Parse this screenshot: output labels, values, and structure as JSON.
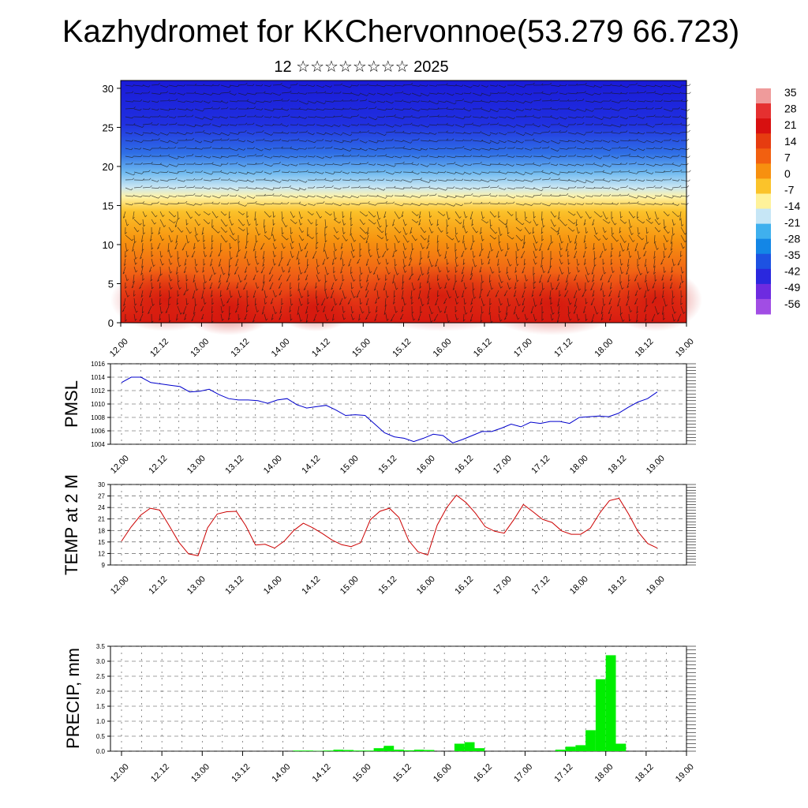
{
  "title": "Kazhydromet for KKChervonnoe(53.279 66.723)",
  "subtitle": "12 ☆☆☆☆☆☆☆☆ 2025",
  "time_labels": [
    "12.00",
    "12.12",
    "13.00",
    "13.12",
    "14.00",
    "14.12",
    "15.00",
    "15.12",
    "16.00",
    "16.12",
    "17.00",
    "17.12",
    "18.00",
    "18.12",
    "19.00"
  ],
  "chart_data": [
    {
      "type": "heatmap",
      "name": "vertical-cross-section",
      "x_ticks": [
        "12.00",
        "12.12",
        "13.00",
        "13.12",
        "14.00",
        "14.12",
        "15.00",
        "15.12",
        "16.00",
        "16.12",
        "17.00",
        "17.12",
        "18.00",
        "18.12",
        "19.00"
      ],
      "y_ticks": [
        0,
        5,
        10,
        15,
        20,
        25,
        30
      ],
      "ylim": [
        0,
        31
      ],
      "colorbar_labels": [
        35,
        28,
        21,
        14,
        7,
        0,
        -7,
        -14,
        -21,
        -28,
        -35,
        -42,
        -49,
        -56
      ],
      "colorbar_colors": [
        "#ef9b9b",
        "#e53030",
        "#d81010",
        "#e63c10",
        "#f26010",
        "#f7900f",
        "#fbc32a",
        "#fff29a",
        "#c6e6f6",
        "#3fb0ee",
        "#1386e6",
        "#1d52e2",
        "#2a28de",
        "#6e2be0",
        "#a14de4"
      ],
      "wind_barbs": true
    },
    {
      "type": "line",
      "name": "PMSL",
      "ylabel": "PMSL",
      "ylim": [
        1004,
        1016
      ],
      "y_ticks": [
        1004,
        1006,
        1008,
        1010,
        1012,
        1014,
        1016
      ],
      "x_ticks": [
        "12.00",
        "12.12",
        "13.00",
        "13.12",
        "14.00",
        "14.12",
        "15.00",
        "15.12",
        "16.00",
        "16.12",
        "17.00",
        "17.12",
        "18.00",
        "18.12",
        "19.00"
      ],
      "color": "#0000cc",
      "values": [
        1013.2,
        1014.0,
        1014.0,
        1013.2,
        1013.0,
        1012.8,
        1012.6,
        1011.8,
        1011.9,
        1012.2,
        1011.4,
        1010.8,
        1010.6,
        1010.6,
        1010.5,
        1010.1,
        1010.6,
        1010.8,
        1009.9,
        1009.4,
        1009.6,
        1009.8,
        1009.1,
        1008.3,
        1008.4,
        1008.3,
        1007.0,
        1005.7,
        1005.1,
        1004.9,
        1004.4,
        1004.9,
        1005.5,
        1005.3,
        1004.2,
        1004.7,
        1005.3,
        1005.9,
        1005.9,
        1006.4,
        1007.0,
        1006.6,
        1007.3,
        1007.1,
        1007.4,
        1007.4,
        1007.1,
        1008.0,
        1008.1,
        1008.2,
        1008.1,
        1008.6,
        1009.5,
        1010.3,
        1010.8,
        1011.8
      ]
    },
    {
      "type": "line",
      "name": "TEMP at 2 M",
      "ylabel": "TEMP at 2 M",
      "ylim": [
        9,
        30
      ],
      "y_ticks": [
        9,
        12,
        15,
        18,
        21,
        24,
        27,
        30
      ],
      "x_ticks": [
        "12.00",
        "12.12",
        "13.00",
        "13.12",
        "14.00",
        "14.12",
        "15.00",
        "15.12",
        "16.00",
        "16.12",
        "17.00",
        "17.12",
        "18.00",
        "18.12",
        "19.00"
      ],
      "color": "#cc0000",
      "values": [
        15.2,
        18.9,
        22.0,
        23.8,
        23.3,
        19.2,
        14.9,
        11.9,
        11.4,
        18.7,
        22.3,
        22.9,
        23.0,
        19.2,
        14.2,
        14.4,
        13.4,
        15.2,
        18.0,
        19.9,
        18.7,
        17.2,
        15.5,
        14.3,
        13.8,
        14.8,
        20.8,
        23.0,
        23.8,
        21.4,
        15.4,
        12.4,
        11.6,
        19.4,
        24.0,
        27.2,
        25.3,
        22.5,
        19.0,
        17.8,
        17.3,
        20.8,
        24.8,
        22.9,
        20.9,
        20.1,
        17.9,
        17.0,
        17.0,
        18.6,
        22.6,
        25.8,
        26.4,
        22.3,
        17.6,
        14.6,
        13.4
      ]
    },
    {
      "type": "bar",
      "name": "PRECIP",
      "ylabel": "PRECIP, mm",
      "ylim": [
        0,
        3.5
      ],
      "y_ticks": [
        "0.0",
        "0.5",
        "1.0",
        "1.5",
        "2.0",
        "2.5",
        "3.0",
        "3.5"
      ],
      "x_ticks": [
        "12.00",
        "12.12",
        "13.00",
        "13.12",
        "14.00",
        "14.12",
        "15.00",
        "15.12",
        "16.00",
        "16.12",
        "17.00",
        "17.12",
        "18.00",
        "18.12",
        "19.00"
      ],
      "color": "#00ee00",
      "values": [
        0,
        0,
        0,
        0,
        0,
        0,
        0,
        0,
        0,
        0,
        0,
        0,
        0,
        0,
        0,
        0,
        0,
        0.02,
        0.02,
        0.01,
        0.02,
        0.05,
        0.04,
        0.02,
        0.02,
        0.1,
        0.18,
        0.05,
        0.03,
        0.05,
        0.04,
        0,
        0,
        0.25,
        0.3,
        0.1,
        0,
        0,
        0,
        0,
        0,
        0,
        0,
        0.05,
        0.15,
        0.2,
        0.7,
        2.4,
        3.2,
        0.25,
        0,
        0,
        0,
        0,
        0,
        0
      ]
    }
  ]
}
